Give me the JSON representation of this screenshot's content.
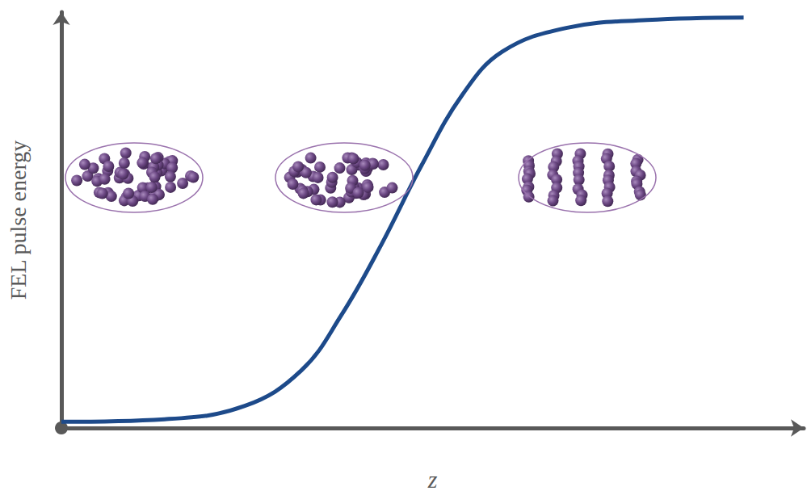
{
  "chart_data": {
    "type": "line",
    "x_label": "z",
    "y_label": "FEL pulse energy",
    "x": [
      0,
      13.9,
      24.7,
      32.3,
      37.7,
      43.1,
      48.5,
      54.0,
      59.4,
      68.0,
      78.9,
      91.9
    ],
    "values": [
      1.5,
      2.1,
      5.3,
      13.8,
      27.1,
      44.1,
      63.1,
      80.1,
      90.5,
      96.2,
      98.1,
      98.7
    ],
    "color": "#1d4a8a",
    "line_style": "smooth",
    "xlim": [
      0,
      100
    ],
    "ylim": [
      0,
      100
    ],
    "grid": false,
    "tick_labels": false
  }
}
